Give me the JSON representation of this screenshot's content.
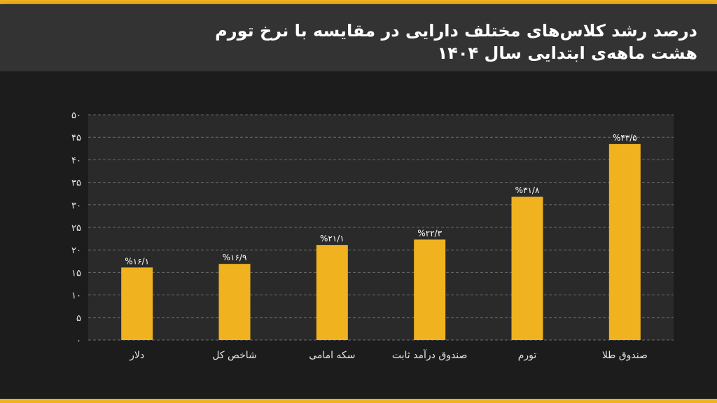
{
  "header": {
    "title_line1": "درصد رشد کلاس‌های مختلف دارایی در مقایسه با نرخ تورم",
    "title_line2": "هشت ماهه‌ی ابتدایی سال ۱۴۰۴"
  },
  "colors": {
    "bar": "#f0b21e",
    "stripe": "#f0b21e",
    "header_bg": "#333333",
    "page_bg": "#1c1c1c",
    "plot_bg": "#2a2a2a",
    "grid": "#6a6a6a"
  },
  "chart_data": {
    "type": "bar",
    "title": "درصد رشد کلاس‌های مختلف دارایی در مقایسه با نرخ تورم هشت ماهه‌ی ابتدایی سال ۱۴۰۴",
    "categories": [
      "دلار",
      "شاخص کل",
      "سکه امامی",
      "صندوق درآمد ثابت",
      "تورم",
      "صندوق طلا"
    ],
    "values": [
      16.1,
      16.9,
      21.1,
      22.3,
      31.8,
      43.5
    ],
    "data_labels": [
      "%۱۶/۱",
      "%۱۶/۹",
      "%۲۱/۱",
      "%۲۲/۳",
      "%۳۱/۸",
      "%۴۳/۵"
    ],
    "ylim": [
      0,
      50
    ],
    "yticks": [
      0,
      5,
      10,
      15,
      20,
      25,
      30,
      35,
      40,
      45,
      50
    ],
    "ytick_labels": [
      "۰",
      "۵",
      "۱۰",
      "۱۵",
      "۲۰",
      "۲۵",
      "۳۰",
      "۳۵",
      "۴۰",
      "۴۵",
      "۵۰"
    ],
    "grid": "horizontal dashed",
    "legend": "none",
    "xlabel": "",
    "ylabel": ""
  }
}
